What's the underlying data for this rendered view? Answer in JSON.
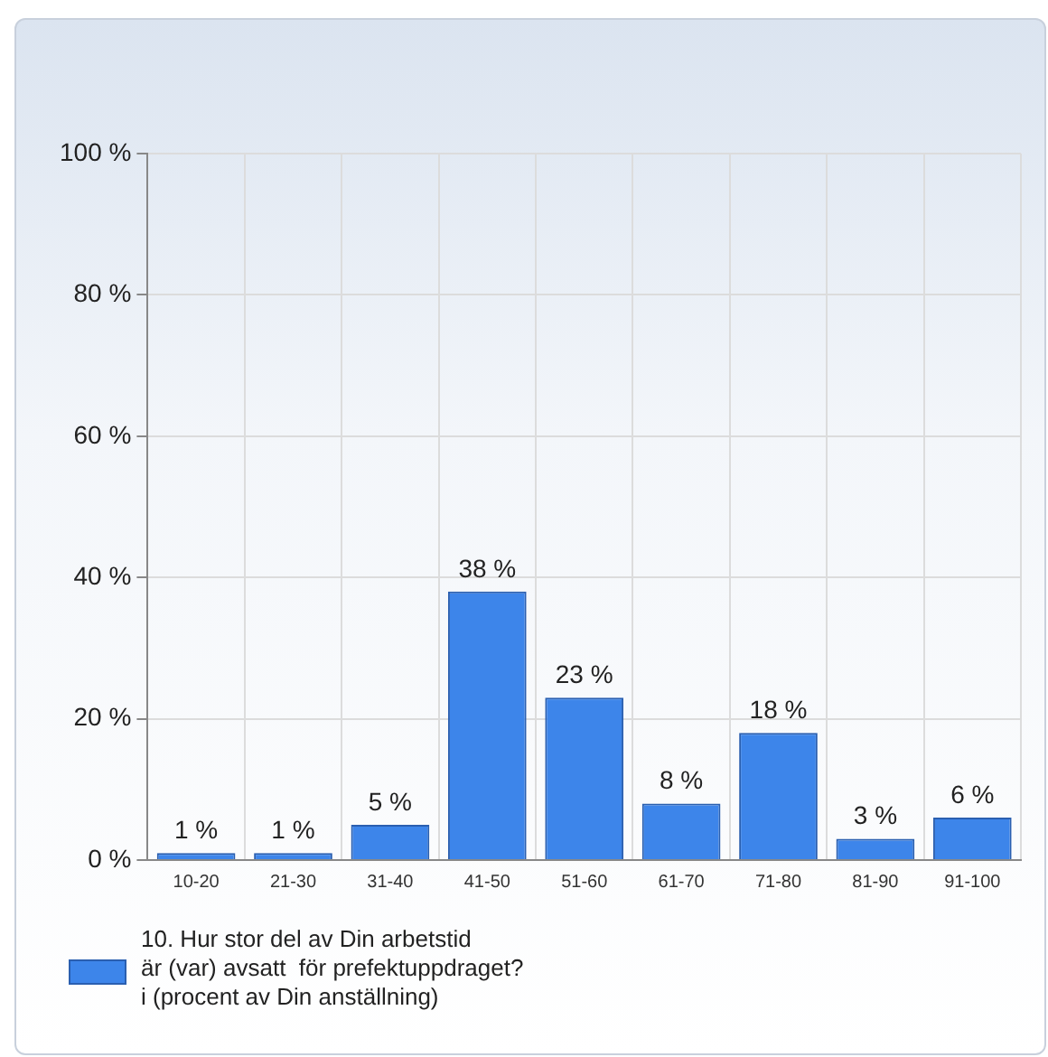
{
  "chart_data": {
    "type": "bar",
    "categories": [
      "10-20",
      "21-30",
      "31-40",
      "41-50",
      "51-60",
      "61-70",
      "71-80",
      "81-90",
      "91-100"
    ],
    "series": [
      {
        "name": "10. Hur stor del av Din arbetstid\när (var) avsatt  för prefektuppdraget?\ni (procent av Din anställning)",
        "color": "#3d85ea",
        "values": [
          1,
          1,
          5,
          38,
          23,
          8,
          18,
          3,
          6
        ],
        "value_labels": [
          "1 %",
          "1 %",
          "5 %",
          "38 %",
          "23 %",
          "8 %",
          "18 %",
          "3 %",
          "6 %"
        ]
      }
    ],
    "ylim": [
      0,
      100
    ],
    "yticks": [
      {
        "value": 0,
        "label": "0 %"
      },
      {
        "value": 20,
        "label": "20 %"
      },
      {
        "value": 40,
        "label": "40 %"
      },
      {
        "value": 60,
        "label": "60 %"
      },
      {
        "value": 80,
        "label": "80 %"
      },
      {
        "value": 100,
        "label": "100 %"
      }
    ],
    "grid": true,
    "legend": "bottom"
  }
}
